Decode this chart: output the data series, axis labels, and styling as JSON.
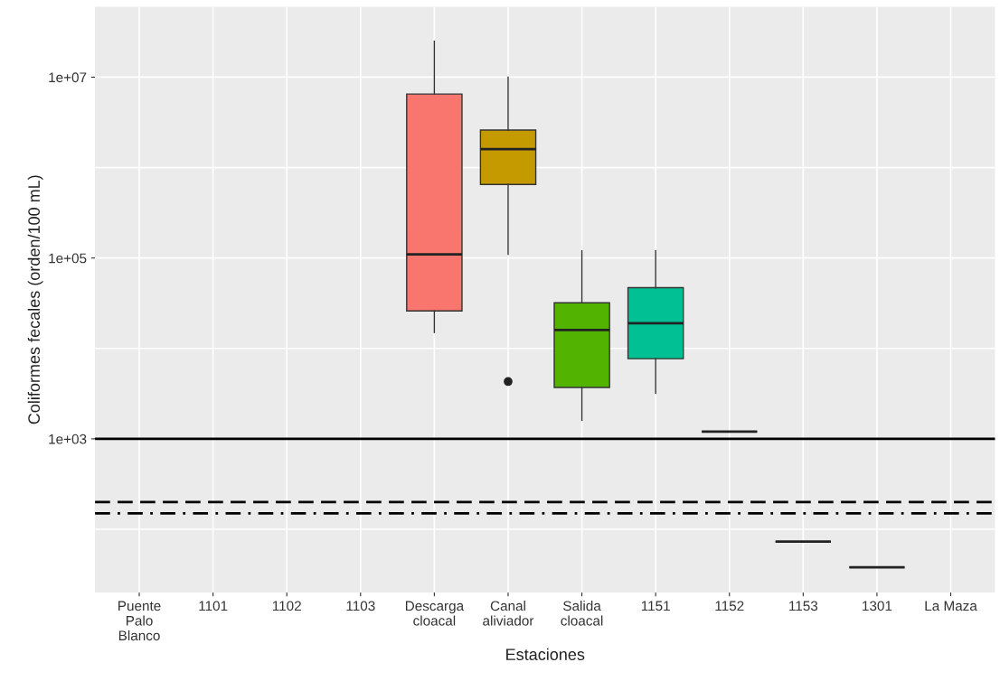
{
  "chart_data": {
    "type": "box",
    "xlabel": "Estaciones",
    "ylabel": "Coliformes fecales (orden/100 mL)",
    "categories": [
      "Puente\nPalo\nBlanco",
      "1101",
      "1102",
      "1103",
      "Descarga\ncloacal",
      "Canal\naliviador",
      "Salida\ncloacal",
      "1151",
      "1152",
      "1153",
      "1301",
      "La Maza"
    ],
    "boxes": [
      null,
      null,
      null,
      null,
      {
        "low": 15000,
        "q1": 26000,
        "median": 110000,
        "q3": 6500000,
        "high": 25000000
      },
      {
        "low": 110000,
        "q1": 650000,
        "median": 1600000,
        "q3": 2600000,
        "high": 10000000,
        "outliers": [
          4300
        ]
      },
      {
        "low": 1600,
        "q1": 3700,
        "median": 16000,
        "q3": 32000,
        "high": 120000
      },
      {
        "low": 3200,
        "q1": 7700,
        "median": 19000,
        "q3": 47000,
        "high": 120000
      },
      {
        "low": 1200,
        "q1": 1200,
        "median": 1200,
        "q3": 1200,
        "high": 1200
      },
      {
        "low": 73,
        "q1": 73,
        "median": 73,
        "q3": 73,
        "high": 73
      },
      {
        "low": 38,
        "q1": 38,
        "median": 38,
        "q3": 38,
        "high": 38
      },
      null
    ],
    "colors": [
      null,
      null,
      null,
      null,
      "#f8766d",
      "#c49a00",
      "#53b400",
      "#00c094",
      "#333333",
      "#333333",
      "#333333",
      null
    ],
    "log": "y",
    "ylim": [
      20,
      60000000
    ],
    "yticks": [
      {
        "value": 100,
        "label": null
      },
      {
        "value": 1000,
        "label": "1e+03"
      },
      {
        "value": 10000,
        "label": null
      },
      {
        "value": 100000,
        "label": "1e+05"
      },
      {
        "value": 1000000,
        "label": null
      },
      {
        "value": 10000000,
        "label": "1e+07"
      }
    ],
    "grid": true,
    "ref_lines": [
      {
        "axis": "y",
        "value": 1000,
        "line_style": "solid"
      },
      {
        "axis": "y",
        "value": 200,
        "line_style": "dashed"
      },
      {
        "axis": "y",
        "value": 150,
        "line_style": "dashdot"
      }
    ]
  }
}
